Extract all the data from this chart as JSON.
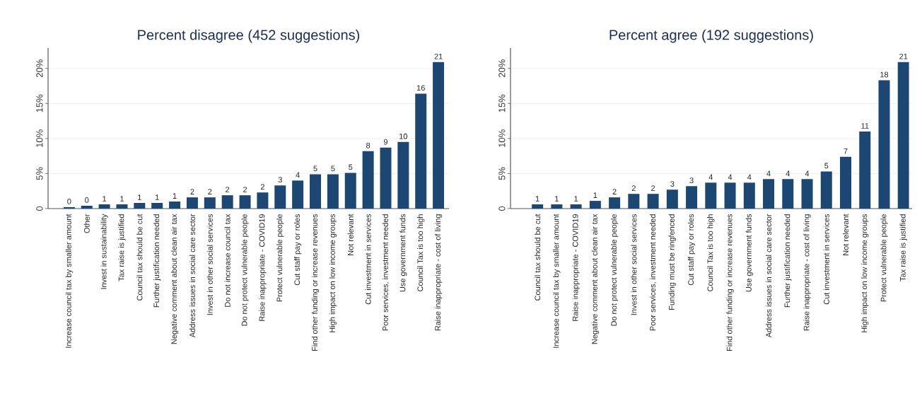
{
  "chart_data": [
    {
      "type": "bar",
      "title": "Percent disagree (452 suggestions)",
      "color": "#1c4772",
      "grid": "y",
      "ylim": [
        0,
        22.9
      ],
      "yticks": [
        0,
        {
          "value": 5,
          "label": "5%"
        },
        {
          "value": 10,
          "label": "10%"
        },
        {
          "value": 15,
          "label": "15%"
        },
        {
          "value": 20,
          "label": "20%"
        }
      ],
      "categories": [
        "Increase council tax by smaller amount",
        "Other",
        "Invest in sustainability",
        "Tax raise is justified",
        "Council tax should be cut",
        "Further justification needed",
        "Negative comment about clean air tax",
        "Address issues in social care sector",
        "Invest in other social services",
        "Do not increase council tax",
        "Do not protect vulnerable people",
        "Raise inappropriate - COVID19",
        "Protect vulnerable people",
        "Cut staff pay or roles",
        "Find other funding or increase revenues",
        "High impact on low income groups",
        "Not relevant",
        "Cut investment in services",
        "Poor services, investment needed",
        "Use government funds",
        "Council Tax is too high",
        "Raise inappropriate - cost of living"
      ],
      "values": [
        0.2,
        0.4,
        0.6,
        0.6,
        0.8,
        0.8,
        1.0,
        1.6,
        1.6,
        1.9,
        1.9,
        2.3,
        3.3,
        4.0,
        4.9,
        4.9,
        5.1,
        8.2,
        8.7,
        9.5,
        16.4,
        20.9
      ],
      "value_labels": [
        "0",
        "0",
        "1",
        "1",
        "1",
        "1",
        "1",
        "2",
        "2",
        "2",
        "2",
        "2",
        "3",
        "4",
        "5",
        "5",
        "5",
        "8",
        "9",
        "10",
        "16",
        "21"
      ]
    },
    {
      "type": "bar",
      "title": "Percent agree (192 suggestions)",
      "color": "#1c4772",
      "grid": "y",
      "ylim": [
        0,
        22.9
      ],
      "yticks": [
        0,
        {
          "value": 5,
          "label": "5%"
        },
        {
          "value": 10,
          "label": "10%"
        },
        {
          "value": 15,
          "label": "15%"
        },
        {
          "value": 20,
          "label": "20%"
        }
      ],
      "categories": [
        "Council tax should be cut",
        "Increase council tax by smaller amount",
        "Raise inappropriate - COVID19",
        "Negative comment about clean air tax",
        "Do not protect vulnerable people",
        "Invest in other social services",
        "Poor services, investment needed",
        "Funding must be ringfenced",
        "Cut staff pay or roles",
        "Council Tax is too high",
        "Find other funding or increase revenues",
        "Use government funds",
        "Address issues in social care sector",
        "Further justification needed",
        "Raise inappropriate - cost of living",
        "Cut investment in services",
        "Not relevant",
        "High impact on low income groups",
        "Protect vulnerable people",
        "Tax raise is justified"
      ],
      "values": [
        0.6,
        0.6,
        0.6,
        1.1,
        1.6,
        2.1,
        2.1,
        2.7,
        3.2,
        3.7,
        3.7,
        3.7,
        4.2,
        4.2,
        4.2,
        5.3,
        7.4,
        11.0,
        18.3,
        20.9
      ],
      "value_labels": [
        "1",
        "1",
        "1",
        "1",
        "2",
        "2",
        "2",
        "3",
        "3",
        "4",
        "4",
        "4",
        "4",
        "4",
        "4",
        "5",
        "7",
        "11",
        "18",
        "21"
      ]
    }
  ]
}
